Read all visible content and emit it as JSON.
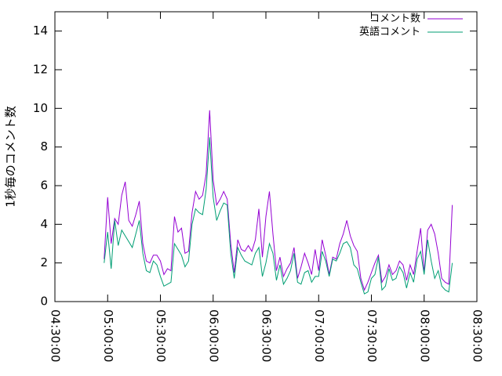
{
  "chart_data": {
    "type": "line",
    "ylabel": "1秒毎のコメント数",
    "x": [
      "04:58:00",
      "05:00:00",
      "05:02:00",
      "05:04:00",
      "05:06:00",
      "05:08:00",
      "05:10:00",
      "05:12:00",
      "05:14:00",
      "05:16:00",
      "05:18:00",
      "05:20:00",
      "05:22:00",
      "05:24:00",
      "05:26:00",
      "05:28:00",
      "05:30:00",
      "05:32:00",
      "05:34:00",
      "05:36:00",
      "05:38:00",
      "05:40:00",
      "05:42:00",
      "05:44:00",
      "05:46:00",
      "05:48:00",
      "05:50:00",
      "05:52:00",
      "05:54:00",
      "05:56:00",
      "05:58:00",
      "06:00:00",
      "06:02:00",
      "06:04:00",
      "06:06:00",
      "06:08:00",
      "06:10:00",
      "06:12:00",
      "06:14:00",
      "06:16:00",
      "06:18:00",
      "06:20:00",
      "06:22:00",
      "06:24:00",
      "06:26:00",
      "06:28:00",
      "06:30:00",
      "06:32:00",
      "06:34:00",
      "06:36:00",
      "06:38:00",
      "06:40:00",
      "06:42:00",
      "06:44:00",
      "06:46:00",
      "06:48:00",
      "06:50:00",
      "06:52:00",
      "06:54:00",
      "06:56:00",
      "06:58:00",
      "07:00:00",
      "07:02:00",
      "07:04:00",
      "07:06:00",
      "07:08:00",
      "07:10:00",
      "07:12:00",
      "07:14:00",
      "07:16:00",
      "07:18:00",
      "07:20:00",
      "07:22:00",
      "07:24:00",
      "07:26:00",
      "07:28:00",
      "07:30:00",
      "07:32:00",
      "07:34:00",
      "07:36:00",
      "07:38:00",
      "07:40:00",
      "07:42:00",
      "07:44:00",
      "07:46:00",
      "07:48:00",
      "07:50:00",
      "07:52:00",
      "07:54:00",
      "07:56:00",
      "07:58:00",
      "08:00:00",
      "08:02:00",
      "08:04:00",
      "08:06:00",
      "08:08:00",
      "08:10:00",
      "08:12:00",
      "08:14:00",
      "08:16:00"
    ],
    "series": [
      {
        "name": "コメント数",
        "color": "#9400d3",
        "values": [
          2.2,
          5.4,
          3.0,
          4.3,
          4.0,
          5.5,
          6.2,
          4.2,
          3.9,
          4.5,
          5.2,
          3.0,
          2.1,
          2.0,
          2.4,
          2.4,
          2.1,
          1.4,
          1.7,
          1.6,
          4.4,
          3.6,
          3.8,
          2.5,
          2.6,
          4.6,
          5.7,
          5.3,
          5.5,
          6.6,
          9.9,
          6.3,
          5.0,
          5.3,
          5.7,
          5.3,
          3.0,
          1.5,
          3.2,
          2.7,
          2.6,
          2.9,
          2.6,
          3.2,
          4.8,
          2.3,
          4.4,
          5.7,
          3.5,
          1.6,
          2.3,
          1.3,
          1.7,
          2.0,
          2.8,
          1.2,
          1.8,
          2.5,
          2.0,
          1.4,
          2.7,
          1.6,
          3.2,
          2.4,
          1.4,
          2.3,
          2.2,
          3.0,
          3.5,
          4.2,
          3.4,
          2.9,
          2.6,
          1.2,
          0.6,
          1.0,
          1.5,
          2.0,
          2.4,
          1.0,
          1.3,
          1.9,
          1.4,
          1.6,
          2.1,
          1.9,
          1.1,
          1.9,
          1.4,
          2.6,
          3.8,
          1.5,
          3.7,
          4.0,
          3.5,
          2.5,
          1.2,
          1.0,
          0.9,
          5.0
        ]
      },
      {
        "name": "英語コメント",
        "color": "#009e73",
        "values": [
          2.0,
          3.6,
          1.7,
          4.2,
          2.9,
          3.7,
          3.4,
          3.1,
          2.8,
          3.5,
          4.2,
          2.5,
          1.6,
          1.5,
          2.1,
          1.9,
          1.3,
          0.8,
          0.9,
          1.0,
          3.0,
          2.7,
          2.4,
          1.8,
          2.1,
          4.0,
          4.8,
          4.6,
          4.5,
          5.8,
          8.5,
          5.4,
          4.2,
          4.7,
          5.1,
          5.0,
          2.5,
          1.2,
          2.8,
          2.4,
          2.1,
          2.0,
          1.9,
          2.5,
          2.8,
          1.3,
          2.0,
          3.0,
          2.5,
          1.1,
          1.9,
          0.9,
          1.2,
          1.6,
          2.5,
          1.0,
          0.9,
          1.5,
          1.6,
          1.0,
          1.3,
          1.3,
          2.6,
          2.1,
          1.3,
          2.2,
          2.1,
          2.5,
          3.0,
          3.1,
          2.8,
          1.9,
          1.7,
          1.0,
          0.4,
          0.5,
          1.2,
          1.4,
          2.3,
          0.6,
          0.8,
          1.7,
          1.1,
          1.2,
          1.8,
          1.5,
          0.7,
          1.5,
          1.0,
          2.2,
          2.6,
          1.4,
          3.2,
          2.1,
          1.2,
          1.6,
          0.8,
          0.6,
          0.5,
          2.0
        ]
      }
    ],
    "xlim": [
      "04:30:00",
      "08:30:00"
    ],
    "xticks": [
      "04:30:00",
      "05:00:00",
      "05:30:00",
      "06:00:00",
      "06:30:00",
      "07:00:00",
      "07:30:00",
      "08:00:00",
      "08:30:00"
    ],
    "ylim": [
      0,
      15
    ],
    "yticks": [
      0,
      2,
      4,
      6,
      8,
      10,
      12,
      14
    ],
    "legend": "top-right"
  }
}
